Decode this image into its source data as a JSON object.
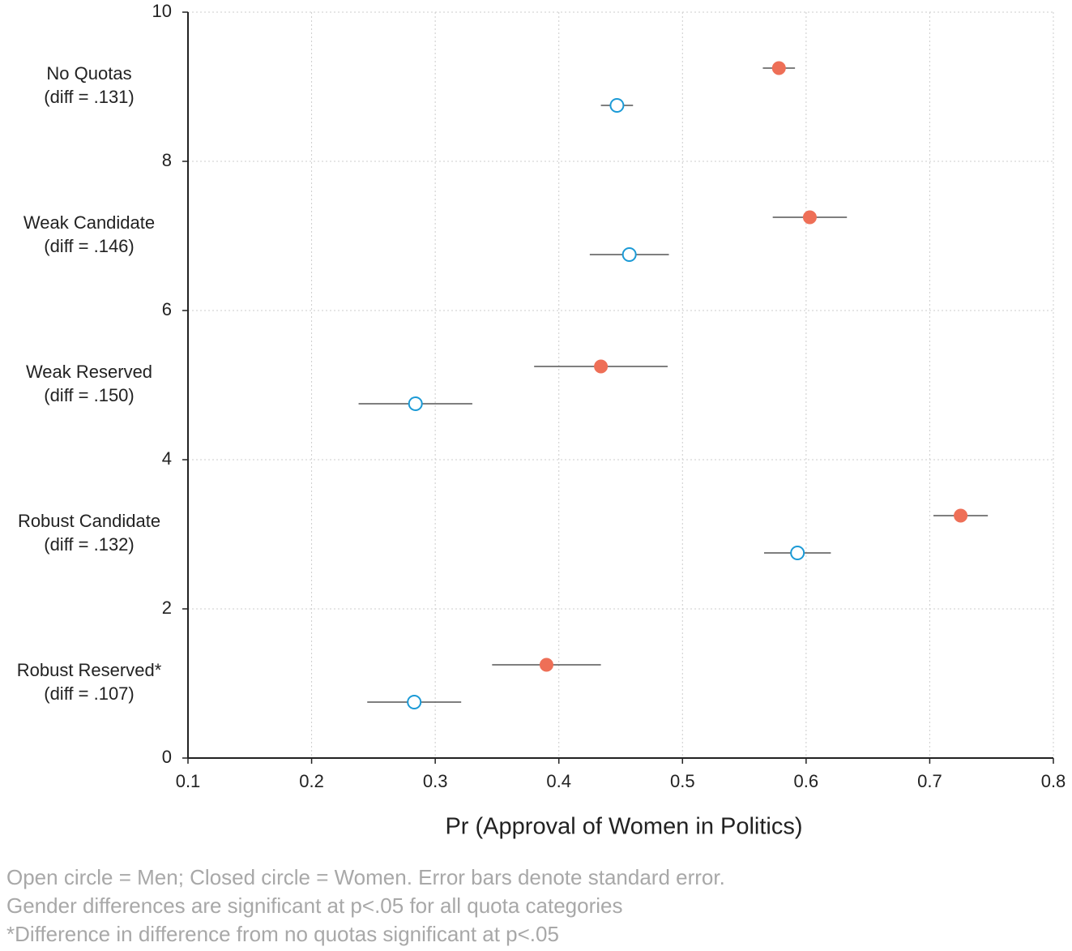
{
  "chart_data": {
    "type": "dot_errorbar",
    "xlabel": "Pr (Approval of Women in Politics)",
    "xlim": [
      0.1,
      0.8
    ],
    "xticks": [
      0.1,
      0.2,
      0.3,
      0.4,
      0.5,
      0.6,
      0.7,
      0.8
    ],
    "ylim": [
      0,
      10
    ],
    "yticks": [
      0,
      2,
      4,
      6,
      8,
      10
    ],
    "grid": true,
    "groups": [
      {
        "label": "No Quotas",
        "sub": "(diff = .131)"
      },
      {
        "label": "Weak Candidate",
        "sub": "(diff = .146)"
      },
      {
        "label": "Weak Reserved",
        "sub": "(diff = .150)"
      },
      {
        "label": "Robust Candidate",
        "sub": "(diff = .132)"
      },
      {
        "label": "Robust Reserved*",
        "sub": "(diff = .107)"
      }
    ],
    "series": [
      {
        "marker": "filled",
        "color": "#ee6f57",
        "x": [
          0.578,
          0.603,
          0.434,
          0.725,
          0.39
        ],
        "xerr": [
          0.013,
          0.03,
          0.054,
          0.022,
          0.044
        ],
        "y": [
          9.25,
          7.25,
          5.25,
          3.25,
          1.25
        ]
      },
      {
        "marker": "open",
        "color": "#1b9ad6",
        "x": [
          0.447,
          0.457,
          0.284,
          0.593,
          0.283
        ],
        "xerr": [
          0.013,
          0.032,
          0.046,
          0.027,
          0.038
        ],
        "y": [
          8.75,
          6.75,
          4.75,
          2.75,
          0.75
        ]
      }
    ],
    "notes": [
      "Open circle = Men; Closed circle = Women. Error bars denote standard error.",
      "Gender differences are significant at p<.05 for all quota categories",
      "*Difference in difference from no quotas significant at p<.05"
    ]
  }
}
